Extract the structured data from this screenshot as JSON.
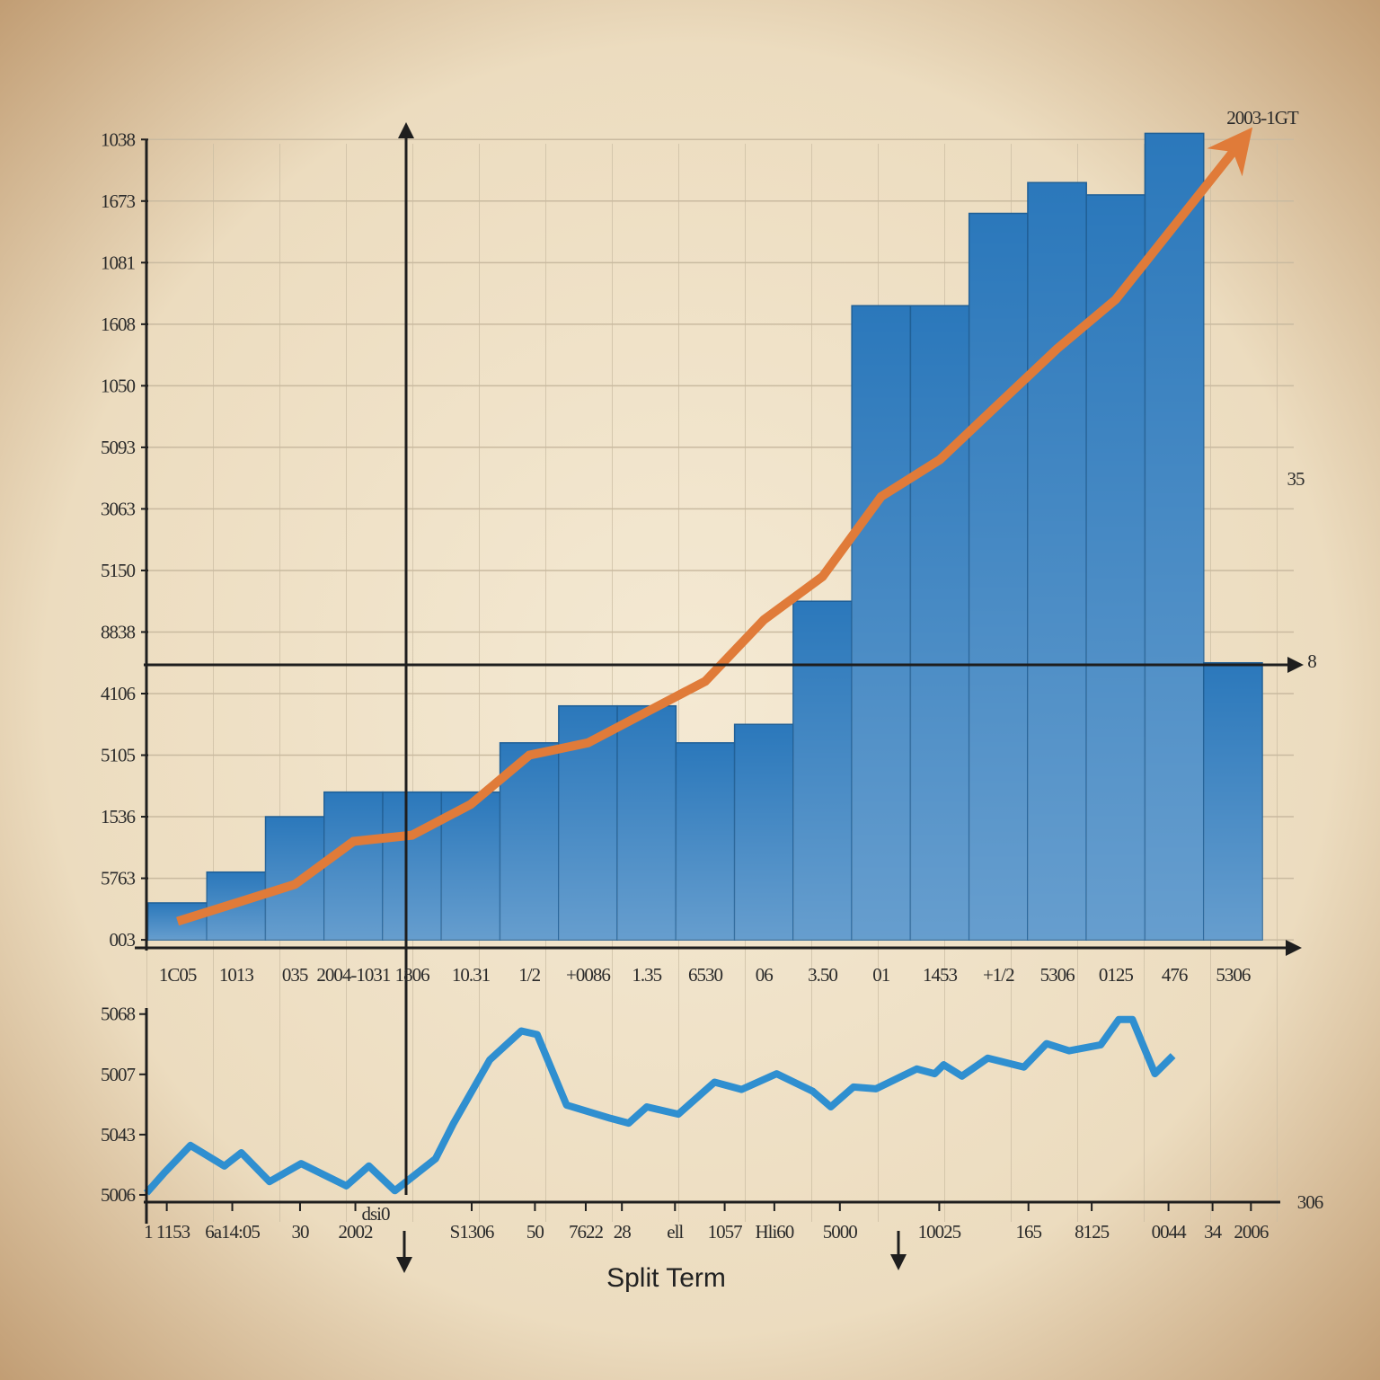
{
  "chart_data": [
    {
      "type": "bar",
      "categories": [
        "1C05",
        "1013",
        "035",
        "2004-1031",
        "1806",
        "10.31",
        "1/2",
        "+0086",
        "1.35",
        "6530",
        "06",
        "3.50",
        "01",
        "1453",
        "+1/2",
        "5306",
        "0125",
        "476",
        "5306"
      ],
      "series": [
        {
          "type": "bar",
          "color": "#2b78bb",
          "values": [
            0.6,
            1.1,
            2.0,
            2.4,
            2.4,
            2.4,
            3.2,
            3.8,
            3.8,
            3.2,
            3.5,
            5.5,
            10.3,
            10.3,
            11.8,
            12.3,
            12.1,
            13.1,
            4.5
          ]
        },
        {
          "type": "line",
          "color": "#e07b39",
          "values": [
            0.3,
            0.6,
            0.9,
            1.6,
            1.7,
            2.2,
            3.0,
            3.2,
            3.7,
            4.2,
            5.2,
            5.9,
            7.2,
            7.8,
            8.7,
            9.6,
            10.4,
            11.6,
            12.8
          ]
        }
      ],
      "ylim": [
        -0.13,
        13.5
      ],
      "yticks": [
        {
          "value": 0,
          "label": "003"
        },
        {
          "value": 1,
          "label": "5763"
        },
        {
          "value": 2,
          "label": "1536"
        },
        {
          "value": 3,
          "label": "5105"
        },
        {
          "value": 4,
          "label": "4106"
        },
        {
          "value": 5,
          "label": "8838"
        },
        {
          "value": 6,
          "label": "5150"
        },
        {
          "value": 7,
          "label": "3063"
        },
        {
          "value": 8,
          "label": "5093"
        },
        {
          "value": 9,
          "label": "1050"
        },
        {
          "value": 10,
          "label": "1608"
        },
        {
          "value": 11,
          "label": "1081"
        },
        {
          "value": 12,
          "label": "1673"
        },
        {
          "value": 13,
          "label": "1038"
        }
      ],
      "grid": true,
      "annotations": [
        "2003-1GT",
        "35",
        "8"
      ]
    },
    {
      "type": "line",
      "title": "Split Term",
      "x": [
        0,
        1.6,
        3.9,
        6.9,
        8.4,
        10.9,
        13.7,
        17.7,
        19.7,
        22.0,
        25.6,
        27.2,
        30.4,
        33.2,
        34.6,
        37.2,
        41.1,
        42.7,
        44.3,
        47.1,
        50.3,
        52.7,
        55.8,
        59.0,
        60.6,
        62.6,
        64.6,
        68.2,
        69.8,
        70.6,
        72.2,
        74.5,
        77.7,
        79.7,
        81.7,
        84.5,
        86.1,
        87.3,
        89.3,
        90.9
      ],
      "series": [
        {
          "color": "#2f8fd0",
          "values": [
            0.03,
            0.37,
            0.82,
            0.48,
            0.7,
            0.22,
            0.52,
            0.15,
            0.48,
            0.07,
            0.6,
            1.19,
            2.24,
            2.72,
            2.66,
            1.49,
            1.27,
            1.19,
            1.46,
            1.34,
            1.87,
            1.75,
            2.01,
            1.72,
            1.46,
            1.79,
            1.76,
            2.09,
            2.01,
            2.16,
            1.97,
            2.27,
            2.12,
            2.51,
            2.39,
            2.49,
            2.91,
            2.91,
            2.01,
            2.31
          ]
        }
      ],
      "xlim": [
        0,
        100
      ],
      "xticks": [
        {
          "value": 1.8,
          "label": "1 1153"
        },
        {
          "value": 7.6,
          "label": "6a14:05"
        },
        {
          "value": 13.6,
          "label": "30"
        },
        {
          "value": 18.5,
          "label": "2002"
        },
        {
          "value": 28.8,
          "label": "S1306"
        },
        {
          "value": 34.4,
          "label": "50"
        },
        {
          "value": 38.9,
          "label": "7622"
        },
        {
          "value": 42.1,
          "label": "28"
        },
        {
          "value": 46.8,
          "label": "ell"
        },
        {
          "value": 51.2,
          "label": "1057"
        },
        {
          "value": 55.6,
          "label": "Hli60"
        },
        {
          "value": 61.4,
          "label": "5000"
        },
        {
          "value": 70.2,
          "label": "10025"
        },
        {
          "value": 78.1,
          "label": "165"
        },
        {
          "value": 83.7,
          "label": "8125"
        },
        {
          "value": 90.5,
          "label": "0044"
        },
        {
          "value": 94.4,
          "label": "34"
        },
        {
          "value": 97.8,
          "label": "2006"
        }
      ],
      "ylim": [
        -0.12,
        3.1
      ],
      "yticks": [
        {
          "value": 0,
          "label": "5006"
        },
        {
          "value": 1,
          "label": "5043"
        },
        {
          "value": 2,
          "label": "5007"
        },
        {
          "value": 3,
          "label": "5068"
        }
      ],
      "annotations": [
        "306",
        "dsi0"
      ]
    }
  ]
}
